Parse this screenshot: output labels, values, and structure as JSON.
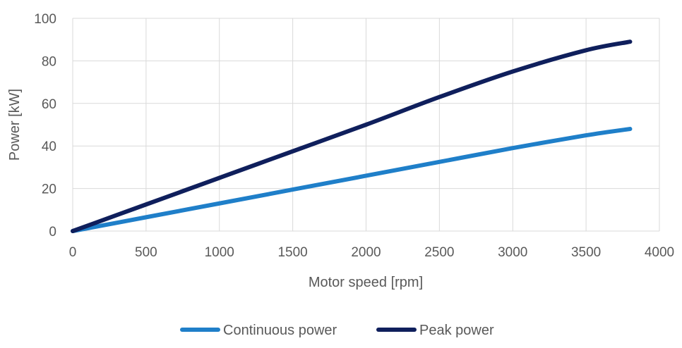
{
  "chart_data": {
    "type": "line",
    "title": "",
    "xlabel": "Motor speed [rpm]",
    "ylabel": "Power [kW]",
    "xlim": [
      0,
      4000
    ],
    "ylim": [
      0,
      100
    ],
    "x_ticks": [
      "0",
      "500",
      "1000",
      "1500",
      "2000",
      "2500",
      "3000",
      "3500",
      "4000"
    ],
    "y_ticks": [
      "0",
      "20",
      "40",
      "60",
      "80",
      "100"
    ],
    "grid": true,
    "legend_position": "bottom",
    "series": [
      {
        "name": "Continuous power",
        "color": "#1f7fc9",
        "x": [
          0,
          500,
          1000,
          1500,
          2000,
          2500,
          3000,
          3500,
          3800
        ],
        "y": [
          0,
          6.5,
          13,
          19.5,
          26,
          32.5,
          39,
          45,
          48
        ]
      },
      {
        "name": "Peak power",
        "color": "#0f1f5c",
        "x": [
          0,
          500,
          1000,
          1500,
          2000,
          2500,
          3000,
          3500,
          3800
        ],
        "y": [
          0,
          12.5,
          25,
          37.5,
          50,
          63,
          75,
          85,
          89
        ]
      }
    ]
  }
}
